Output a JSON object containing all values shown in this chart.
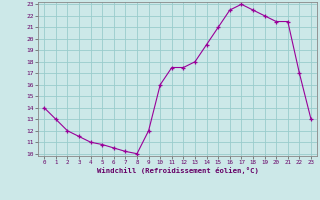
{
  "x_values": [
    0,
    1,
    2,
    3,
    4,
    5,
    6,
    7,
    8,
    9,
    10,
    11,
    12,
    13,
    14,
    15,
    16,
    17,
    18,
    19,
    20,
    21,
    22,
    23
  ],
  "y_values": [
    14.0,
    13.0,
    12.0,
    11.5,
    11.0,
    10.8,
    10.5,
    10.2,
    10.0,
    12.0,
    16.0,
    17.5,
    17.5,
    18.0,
    19.5,
    21.0,
    22.5,
    23.0,
    22.5,
    22.0,
    21.5,
    21.5,
    17.0,
    13.0
  ],
  "line_color": "#990099",
  "marker_color": "#990099",
  "bg_color": "#cce8e8",
  "grid_color": "#99cccc",
  "xlabel": "Windchill (Refroidissement éolien,°C)",
  "ylim": [
    10,
    23
  ],
  "xlim": [
    -0.5,
    23.5
  ],
  "yticks": [
    10,
    11,
    12,
    13,
    14,
    15,
    16,
    17,
    18,
    19,
    20,
    21,
    22,
    23
  ],
  "xticks": [
    0,
    1,
    2,
    3,
    4,
    5,
    6,
    7,
    8,
    9,
    10,
    11,
    12,
    13,
    14,
    15,
    16,
    17,
    18,
    19,
    20,
    21,
    22,
    23
  ]
}
